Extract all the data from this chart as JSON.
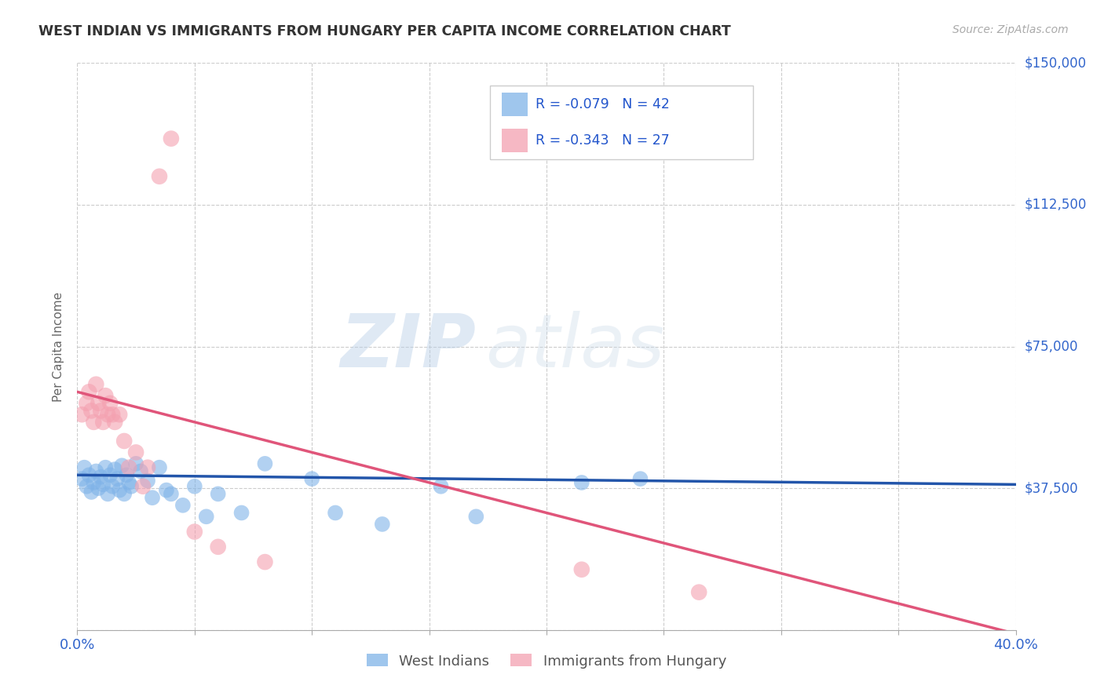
{
  "title": "WEST INDIAN VS IMMIGRANTS FROM HUNGARY PER CAPITA INCOME CORRELATION CHART",
  "source": "Source: ZipAtlas.com",
  "ylabel": "Per Capita Income",
  "xlim": [
    0.0,
    0.4
  ],
  "ylim": [
    0,
    150000
  ],
  "yticks": [
    0,
    37500,
    75000,
    112500,
    150000
  ],
  "ytick_labels": [
    "",
    "$37,500",
    "$75,000",
    "$112,500",
    "$150,000"
  ],
  "background_color": "#ffffff",
  "grid_color": "#cccccc",
  "watermark_zip": "ZIP",
  "watermark_atlas": "atlas",
  "blue_color": "#7fb3e8",
  "pink_color": "#f4a0b0",
  "legend_blue_R": "R = -0.079",
  "legend_blue_N": "N = 42",
  "legend_pink_R": "R = -0.343",
  "legend_pink_N": "N = 27",
  "legend_label_blue": "West Indians",
  "legend_label_pink": "Immigrants from Hungary",
  "blue_scatter_x": [
    0.002,
    0.003,
    0.004,
    0.005,
    0.006,
    0.007,
    0.008,
    0.009,
    0.01,
    0.011,
    0.012,
    0.013,
    0.014,
    0.015,
    0.016,
    0.017,
    0.018,
    0.019,
    0.02,
    0.021,
    0.022,
    0.023,
    0.025,
    0.027,
    0.03,
    0.032,
    0.035,
    0.038,
    0.04,
    0.045,
    0.05,
    0.055,
    0.06,
    0.07,
    0.08,
    0.1,
    0.11,
    0.13,
    0.155,
    0.17,
    0.215,
    0.24
  ],
  "blue_scatter_y": [
    40000,
    43000,
    38000,
    41000,
    36500,
    39000,
    42000,
    37500,
    40500,
    38500,
    43000,
    36000,
    41000,
    38000,
    42500,
    40000,
    37000,
    43500,
    36000,
    41000,
    39000,
    38000,
    44000,
    42000,
    39500,
    35000,
    43000,
    37000,
    36000,
    33000,
    38000,
    30000,
    36000,
    31000,
    44000,
    40000,
    31000,
    28000,
    38000,
    30000,
    39000,
    40000
  ],
  "pink_scatter_x": [
    0.002,
    0.004,
    0.005,
    0.006,
    0.007,
    0.008,
    0.009,
    0.01,
    0.011,
    0.012,
    0.013,
    0.014,
    0.015,
    0.016,
    0.018,
    0.02,
    0.022,
    0.025,
    0.028,
    0.03,
    0.035,
    0.04,
    0.05,
    0.06,
    0.08,
    0.215,
    0.265
  ],
  "pink_scatter_y": [
    57000,
    60000,
    63000,
    58000,
    55000,
    65000,
    60000,
    58000,
    55000,
    62000,
    57000,
    60000,
    57000,
    55000,
    57000,
    50000,
    43000,
    47000,
    38000,
    43000,
    120000,
    130000,
    26000,
    22000,
    18000,
    16000,
    10000
  ],
  "blue_line_x": [
    0.0,
    0.4
  ],
  "blue_line_y": [
    41000,
    38500
  ],
  "pink_line_x": [
    0.0,
    0.4
  ],
  "pink_line_y": [
    63000,
    -1000
  ],
  "line_blue_color": "#2255aa",
  "line_pink_color": "#e0557a"
}
